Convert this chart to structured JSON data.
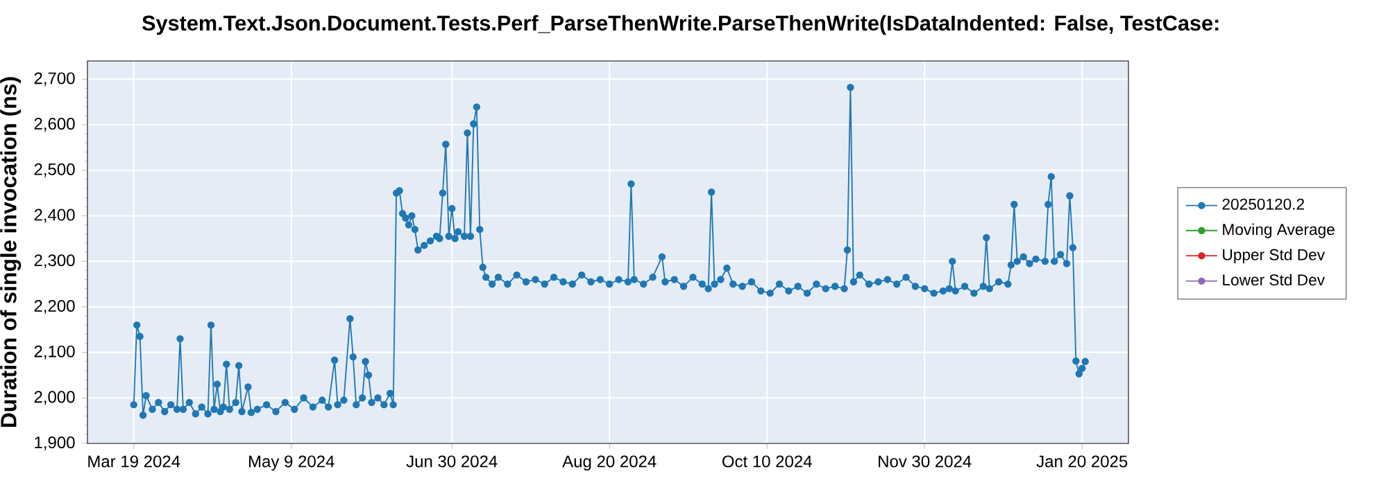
{
  "chart_data": {
    "type": "line",
    "title": "System.Text.Json.Document.Tests.Perf_ParseThenWrite.ParseThenWrite(IsDataIndented: False, TestCase:",
    "ylabel": "Duration of single invocation (ns)",
    "x": [
      "2024-03-19",
      "2024-03-20",
      "2024-03-21",
      "2024-03-22",
      "2024-03-23",
      "2024-03-25",
      "2024-03-27",
      "2024-03-29",
      "2024-03-31",
      "2024-04-02",
      "2024-04-03",
      "2024-04-04",
      "2024-04-06",
      "2024-04-08",
      "2024-04-10",
      "2024-04-12",
      "2024-04-13",
      "2024-04-14",
      "2024-04-15",
      "2024-04-16",
      "2024-04-17",
      "2024-04-18",
      "2024-04-19",
      "2024-04-21",
      "2024-04-22",
      "2024-04-23",
      "2024-04-25",
      "2024-04-26",
      "2024-04-28",
      "2024-05-01",
      "2024-05-04",
      "2024-05-07",
      "2024-05-10",
      "2024-05-13",
      "2024-05-16",
      "2024-05-19",
      "2024-05-21",
      "2024-05-23",
      "2024-05-24",
      "2024-05-26",
      "2024-05-28",
      "2024-05-29",
      "2024-05-30",
      "2024-06-01",
      "2024-06-02",
      "2024-06-03",
      "2024-06-04",
      "2024-06-06",
      "2024-06-08",
      "2024-06-10",
      "2024-06-11",
      "2024-06-12",
      "2024-06-13",
      "2024-06-14",
      "2024-06-15",
      "2024-06-16",
      "2024-06-17",
      "2024-06-18",
      "2024-06-19",
      "2024-06-21",
      "2024-06-23",
      "2024-06-25",
      "2024-06-26",
      "2024-06-27",
      "2024-06-28",
      "2024-06-29",
      "2024-06-30",
      "2024-07-01",
      "2024-07-02",
      "2024-07-04",
      "2024-07-05",
      "2024-07-06",
      "2024-07-07",
      "2024-07-08",
      "2024-07-09",
      "2024-07-10",
      "2024-07-11",
      "2024-07-13",
      "2024-07-15",
      "2024-07-18",
      "2024-07-21",
      "2024-07-24",
      "2024-07-27",
      "2024-07-30",
      "2024-08-02",
      "2024-08-05",
      "2024-08-08",
      "2024-08-11",
      "2024-08-14",
      "2024-08-17",
      "2024-08-20",
      "2024-08-23",
      "2024-08-26",
      "2024-08-27",
      "2024-08-28",
      "2024-08-31",
      "2024-09-03",
      "2024-09-06",
      "2024-09-07",
      "2024-09-10",
      "2024-09-13",
      "2024-09-16",
      "2024-09-19",
      "2024-09-21",
      "2024-09-22",
      "2024-09-23",
      "2024-09-25",
      "2024-09-27",
      "2024-09-29",
      "2024-10-02",
      "2024-10-05",
      "2024-10-08",
      "2024-10-11",
      "2024-10-14",
      "2024-10-17",
      "2024-10-20",
      "2024-10-23",
      "2024-10-26",
      "2024-10-29",
      "2024-11-01",
      "2024-11-04",
      "2024-11-05",
      "2024-11-06",
      "2024-11-07",
      "2024-11-09",
      "2024-11-12",
      "2024-11-15",
      "2024-11-18",
      "2024-11-21",
      "2024-11-24",
      "2024-11-27",
      "2024-11-30",
      "2024-12-03",
      "2024-12-06",
      "2024-12-08",
      "2024-12-09",
      "2024-12-10",
      "2024-12-13",
      "2024-12-16",
      "2024-12-19",
      "2024-12-20",
      "2024-12-21",
      "2024-12-24",
      "2024-12-27",
      "2024-12-28",
      "2024-12-29",
      "2024-12-30",
      "2025-01-01",
      "2025-01-03",
      "2025-01-05",
      "2025-01-08",
      "2025-01-09",
      "2025-01-10",
      "2025-01-11",
      "2025-01-13",
      "2025-01-15",
      "2025-01-16",
      "2025-01-17",
      "2025-01-18",
      "2025-01-19",
      "2025-01-20",
      "2025-01-21"
    ],
    "series": [
      {
        "name": "20250120.2",
        "color": "#1f77b4",
        "values": [
          1985,
          2160,
          2135,
          1962,
          2005,
          1975,
          1990,
          1970,
          1985,
          1975,
          2130,
          1975,
          1990,
          1965,
          1980,
          1965,
          2160,
          1975,
          2030,
          1970,
          1980,
          2074,
          1975,
          1990,
          2071,
          1970,
          2024,
          1968,
          1975,
          1985,
          1970,
          1990,
          1975,
          2000,
          1980,
          1995,
          1980,
          2083,
          1985,
          1995,
          2174,
          2090,
          1985,
          2000,
          2080,
          2050,
          1990,
          2000,
          1985,
          2010,
          1985,
          2450,
          2455,
          2405,
          2395,
          2380,
          2400,
          2370,
          2325,
          2335,
          2345,
          2355,
          2350,
          2450,
          2557,
          2355,
          2416,
          2350,
          2365,
          2355,
          2582,
          2355,
          2602,
          2639,
          2370,
          2287,
          2265,
          2250,
          2265,
          2250,
          2270,
          2255,
          2260,
          2250,
          2265,
          2255,
          2250,
          2270,
          2255,
          2260,
          2250,
          2260,
          2255,
          2470,
          2260,
          2250,
          2265,
          2310,
          2255,
          2260,
          2245,
          2265,
          2250,
          2240,
          2452,
          2250,
          2260,
          2285,
          2250,
          2245,
          2255,
          2235,
          2230,
          2250,
          2235,
          2245,
          2230,
          2250,
          2240,
          2245,
          2240,
          2325,
          2682,
          2255,
          2270,
          2250,
          2255,
          2260,
          2250,
          2265,
          2245,
          2240,
          2230,
          2235,
          2240,
          2300,
          2235,
          2245,
          2230,
          2245,
          2352,
          2240,
          2255,
          2250,
          2292,
          2425,
          2300,
          2310,
          2295,
          2305,
          2300,
          2425,
          2486,
          2300,
          2315,
          2295,
          2444,
          2330,
          2081,
          2053,
          2065,
          2080
        ]
      },
      {
        "name": "Moving Average",
        "color": "#2ca02c",
        "values": [
          null,
          null,
          null,
          null,
          null,
          null,
          null,
          null,
          null,
          null,
          null,
          null,
          null,
          null,
          null,
          null,
          null,
          null,
          null,
          null,
          null,
          null,
          null,
          null,
          null,
          null,
          null,
          null,
          null,
          null,
          null,
          null,
          null,
          null,
          null,
          null,
          null,
          null,
          null,
          null,
          null,
          null,
          null,
          null,
          null,
          null,
          null,
          null,
          null,
          null,
          null,
          null,
          null,
          null,
          null,
          null,
          null,
          null,
          null,
          null,
          null,
          null,
          null,
          null,
          null,
          null,
          null,
          null,
          null,
          null,
          null,
          null,
          null,
          null,
          null,
          null,
          null,
          null,
          null,
          null,
          null,
          null,
          null,
          null,
          null,
          null,
          null,
          null,
          null,
          null,
          null,
          null,
          null,
          null,
          null,
          null,
          null,
          null,
          null,
          null,
          null,
          null,
          null,
          null,
          null,
          null,
          null,
          null,
          null,
          null,
          null,
          null,
          null,
          null,
          null,
          null,
          null,
          null,
          null,
          null,
          null,
          null,
          null,
          null,
          null,
          null,
          null,
          null,
          null,
          null,
          null,
          null,
          null,
          null,
          null,
          null,
          null,
          null,
          null,
          null,
          null,
          null,
          null,
          null,
          null,
          null,
          null,
          null,
          null,
          null,
          null,
          null,
          null,
          null,
          null,
          null,
          null,
          null,
          null,
          null,
          null,
          null
        ]
      },
      {
        "name": "Upper Std Dev",
        "color": "#d62728",
        "values": [
          null,
          null,
          null,
          null,
          null,
          null,
          null,
          null,
          null,
          null,
          null,
          null,
          null,
          null,
          null,
          null,
          null,
          null,
          null,
          null,
          null,
          null,
          null,
          null,
          null,
          null,
          null,
          null,
          null,
          null,
          null,
          null,
          null,
          null,
          null,
          null,
          null,
          null,
          null,
          null,
          null,
          null,
          null,
          null,
          null,
          null,
          null,
          null,
          null,
          null,
          null,
          null,
          null,
          null,
          null,
          null,
          null,
          null,
          null,
          null,
          null,
          null,
          null,
          null,
          null,
          null,
          null,
          null,
          null,
          null,
          null,
          null,
          null,
          null,
          null,
          null,
          null,
          null,
          null,
          null,
          null,
          null,
          null,
          null,
          null,
          null,
          null,
          null,
          null,
          null,
          null,
          null,
          null,
          null,
          null,
          null,
          null,
          null,
          null,
          null,
          null,
          null,
          null,
          null,
          null,
          null,
          null,
          null,
          null,
          null,
          null,
          null,
          null,
          null,
          null,
          null,
          null,
          null,
          null,
          null,
          null,
          null,
          null,
          null,
          null,
          null,
          null,
          null,
          null,
          null,
          null,
          null,
          null,
          null,
          null,
          null,
          null,
          null,
          null,
          null,
          null,
          null,
          null,
          null,
          null,
          null,
          null,
          null,
          null,
          null,
          null,
          null,
          null,
          null,
          null,
          null,
          null,
          null,
          null,
          null,
          null,
          null
        ]
      },
      {
        "name": "Lower Std Dev",
        "color": "#9467bd",
        "values": [
          null,
          null,
          null,
          null,
          null,
          null,
          null,
          null,
          null,
          null,
          null,
          null,
          null,
          null,
          null,
          null,
          null,
          null,
          null,
          null,
          null,
          null,
          null,
          null,
          null,
          null,
          null,
          null,
          null,
          null,
          null,
          null,
          null,
          null,
          null,
          null,
          null,
          null,
          null,
          null,
          null,
          null,
          null,
          null,
          null,
          null,
          null,
          null,
          null,
          null,
          null,
          null,
          null,
          null,
          null,
          null,
          null,
          null,
          null,
          null,
          null,
          null,
          null,
          null,
          null,
          null,
          null,
          null,
          null,
          null,
          null,
          null,
          null,
          null,
          null,
          null,
          null,
          null,
          null,
          null,
          null,
          null,
          null,
          null,
          null,
          null,
          null,
          null,
          null,
          null,
          null,
          null,
          null,
          null,
          null,
          null,
          null,
          null,
          null,
          null,
          null,
          null,
          null,
          null,
          null,
          null,
          null,
          null,
          null,
          null,
          null,
          null,
          null,
          null,
          null,
          null,
          null,
          null,
          null,
          null,
          null,
          null,
          null,
          null,
          null,
          null,
          null,
          null,
          null,
          null,
          null,
          null,
          null,
          null,
          null,
          null,
          null,
          null,
          null,
          null,
          null,
          null,
          null,
          null,
          null,
          null,
          null,
          null,
          null,
          null,
          null,
          null,
          null,
          null,
          null,
          null,
          null,
          null,
          null,
          null,
          null,
          null
        ]
      }
    ],
    "xlim": [
      "2024-03-04",
      "2025-02-04"
    ],
    "xticks": [
      {
        "value": "2024-03-19",
        "label": "Mar 19 2024"
      },
      {
        "value": "2024-05-09",
        "label": "May 9 2024"
      },
      {
        "value": "2024-06-30",
        "label": "Jun 30 2024"
      },
      {
        "value": "2024-08-20",
        "label": "Aug 20 2024"
      },
      {
        "value": "2024-10-10",
        "label": "Oct 10 2024"
      },
      {
        "value": "2024-11-30",
        "label": "Nov 30 2024"
      },
      {
        "value": "2025-01-20",
        "label": "Jan 20 2025"
      }
    ],
    "ylim": [
      1900,
      2740
    ],
    "yticks": [
      {
        "value": 1900,
        "label": "1,900"
      },
      {
        "value": 2000,
        "label": "2,000"
      },
      {
        "value": 2100,
        "label": "2,100"
      },
      {
        "value": 2200,
        "label": "2,200"
      },
      {
        "value": 2300,
        "label": "2,300"
      },
      {
        "value": 2400,
        "label": "2,400"
      },
      {
        "value": 2500,
        "label": "2,500"
      },
      {
        "value": 2600,
        "label": "2,600"
      },
      {
        "value": 2700,
        "label": "2,700"
      }
    ],
    "grid": true,
    "legend": "right",
    "marker": "circle",
    "line_style": "solid"
  }
}
